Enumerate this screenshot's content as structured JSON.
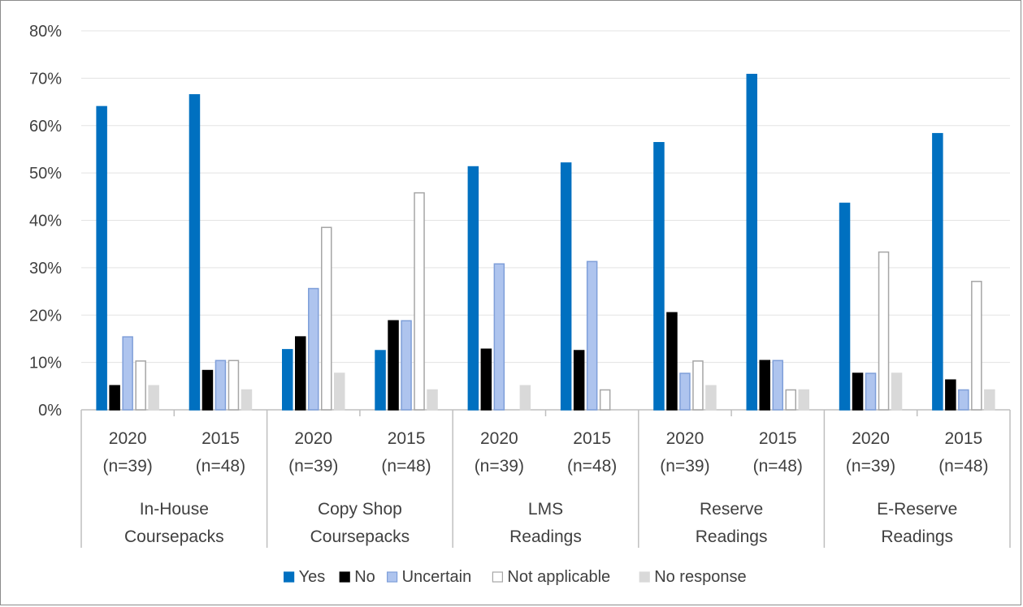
{
  "chart_data": {
    "type": "bar",
    "title": "",
    "xlabel": "",
    "ylabel": "",
    "ylim": [
      0,
      80
    ],
    "y_ticks": [
      "0%",
      "10%",
      "20%",
      "30%",
      "40%",
      "50%",
      "60%",
      "70%",
      "80%"
    ],
    "grid": true,
    "legend_position": "bottom",
    "groups": [
      {
        "label_line1": "In-House",
        "label_line2": "Coursepacks",
        "subcategories": [
          {
            "year": "2020",
            "n": "(n=39)"
          },
          {
            "year": "2015",
            "n": "(n=48)"
          }
        ]
      },
      {
        "label_line1": "Copy Shop",
        "label_line2": "Coursepacks",
        "subcategories": [
          {
            "year": "2020",
            "n": "(n=39)"
          },
          {
            "year": "2015",
            "n": "(n=48)"
          }
        ]
      },
      {
        "label_line1": "LMS",
        "label_line2": "Readings",
        "subcategories": [
          {
            "year": "2020",
            "n": "(n=39)"
          },
          {
            "year": "2015",
            "n": "(n=48)"
          }
        ]
      },
      {
        "label_line1": "Reserve",
        "label_line2": "Readings",
        "subcategories": [
          {
            "year": "2020",
            "n": "(n=39)"
          },
          {
            "year": "2015",
            "n": "(n=48)"
          }
        ]
      },
      {
        "label_line1": "E-Reserve",
        "label_line2": "Readings",
        "subcategories": [
          {
            "year": "2020",
            "n": "(n=39)"
          },
          {
            "year": "2015",
            "n": "(n=48)"
          }
        ]
      }
    ],
    "categories": [
      "In-House Coursepacks 2020 (n=39)",
      "In-House Coursepacks 2015 (n=48)",
      "Copy Shop Coursepacks 2020 (n=39)",
      "Copy Shop Coursepacks 2015 (n=48)",
      "LMS Readings 2020 (n=39)",
      "LMS Readings 2015 (n=48)",
      "Reserve Readings 2020 (n=39)",
      "Reserve Readings 2015 (n=48)",
      "E-Reserve Readings 2020 (n=39)",
      "E-Reserve Readings 2015 (n=48)"
    ],
    "series": [
      {
        "name": "Yes",
        "fill": "#0070c0",
        "stroke": "#0070c0",
        "values": [
          64,
          66.5,
          12.7,
          12.5,
          51.3,
          52.1,
          56.4,
          70.8,
          43.6,
          58.3
        ]
      },
      {
        "name": "No",
        "fill": "#000000",
        "stroke": "#000000",
        "values": [
          5.1,
          8.3,
          15.4,
          18.8,
          12.8,
          12.5,
          20.5,
          10.4,
          7.7,
          6.3
        ]
      },
      {
        "name": "Uncertain",
        "fill": "#aec4ee",
        "stroke": "#7f9fd9",
        "values": [
          15.4,
          10.4,
          25.6,
          18.8,
          30.8,
          31.3,
          7.7,
          10.4,
          7.7,
          4.2
        ]
      },
      {
        "name": "Not applicable",
        "fill": "#ffffff",
        "stroke": "#a6a6a6",
        "values": [
          10.3,
          10.4,
          38.5,
          45.8,
          0,
          4.2,
          10.3,
          4.2,
          33.3,
          27.1
        ]
      },
      {
        "name": "No response",
        "fill": "#d9d9d9",
        "stroke": "#d9d9d9",
        "values": [
          5.1,
          4.2,
          7.7,
          4.2,
          5.1,
          0,
          5.1,
          4.2,
          7.7,
          4.2
        ]
      }
    ]
  }
}
